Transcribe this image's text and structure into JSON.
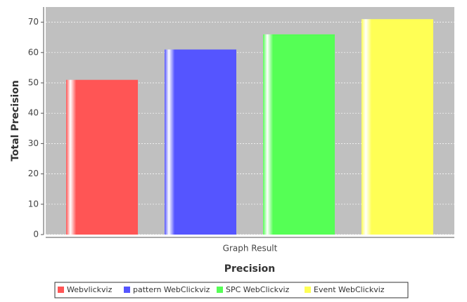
{
  "chart_data": {
    "type": "bar",
    "categories": [
      "Graph Result"
    ],
    "x_label": "Precision",
    "y_label": "Total Precision",
    "series": [
      {
        "name": "Webvlickviz",
        "color": "#ff5555",
        "values": [
          51
        ]
      },
      {
        "name": "pattern WebClickviz",
        "color": "#5555ff",
        "values": [
          61
        ]
      },
      {
        "name": "SPC WebClickviz",
        "color": "#55ff55",
        "values": [
          66
        ]
      },
      {
        "name": "Event WebClickviz",
        "color": "#ffff55",
        "values": [
          71
        ]
      }
    ],
    "ylim": [
      0,
      75
    ],
    "yticks": [
      0,
      10,
      20,
      30,
      40,
      50,
      60,
      70
    ],
    "grid": true,
    "legend": "bottom"
  }
}
